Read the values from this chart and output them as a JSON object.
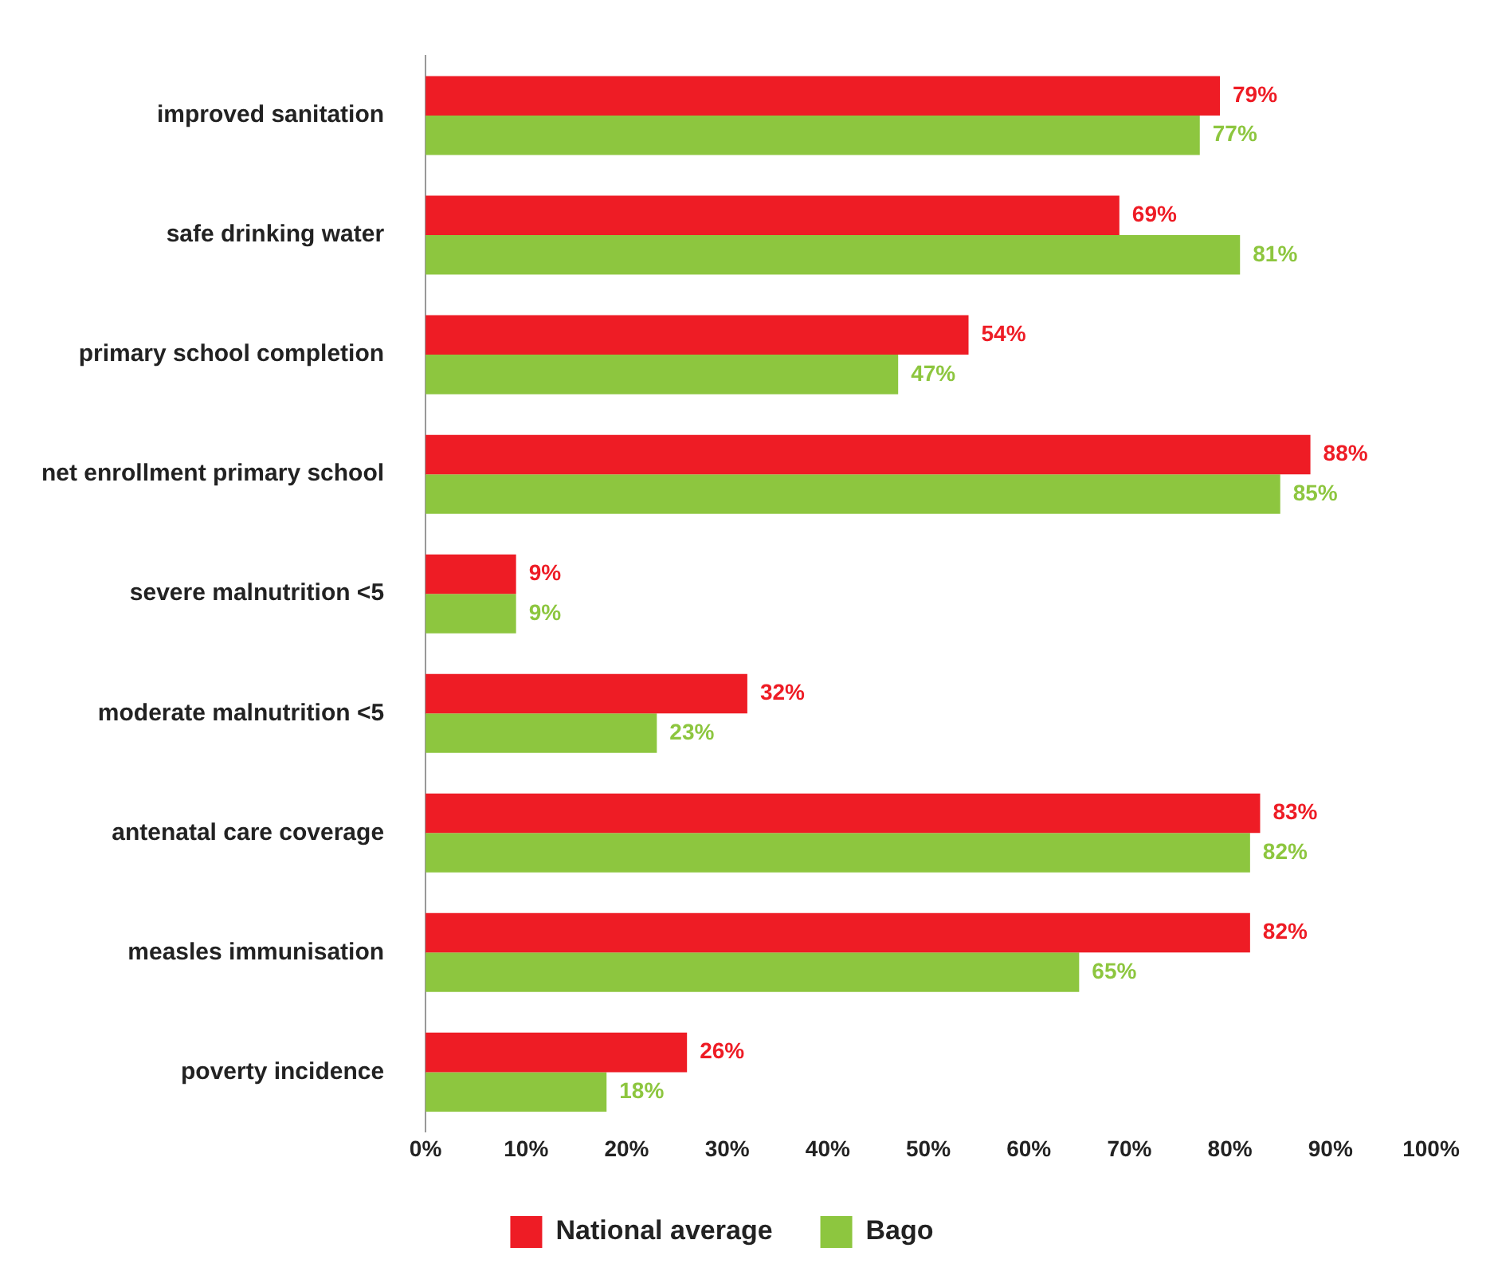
{
  "chart_data": {
    "type": "bar",
    "orientation": "horizontal",
    "categories": [
      "improved sanitation",
      "safe drinking water",
      "primary school completion",
      "net enrollment primary school",
      "severe malnutrition <5",
      "moderate malnutrition <5",
      "antenatal care coverage",
      "measles immunisation",
      "poverty incidence"
    ],
    "series": [
      {
        "name": "National average",
        "color": "#ee1c25",
        "values": [
          79,
          69,
          54,
          88,
          9,
          32,
          83,
          82,
          26
        ],
        "value_labels": [
          "79%",
          "69%",
          "54%",
          "88%",
          "9%",
          "32%",
          "83%",
          "82%",
          "26%"
        ]
      },
      {
        "name": "Bago",
        "color": "#8dc63f",
        "values": [
          77,
          81,
          47,
          85,
          9,
          23,
          82,
          65,
          18
        ],
        "value_labels": [
          "77%",
          "81%",
          "47%",
          "85%",
          "9%",
          "23%",
          "82%",
          "65%",
          "18%"
        ]
      }
    ],
    "xlim": [
      0,
      100
    ],
    "xticks": [
      {
        "value": 0,
        "label": "0%"
      },
      {
        "value": 10,
        "label": "10%"
      },
      {
        "value": 20,
        "label": "20%"
      },
      {
        "value": 30,
        "label": "30%"
      },
      {
        "value": 40,
        "label": "40%"
      },
      {
        "value": 50,
        "label": "50%"
      },
      {
        "value": 60,
        "label": "60%"
      },
      {
        "value": 70,
        "label": "70%"
      },
      {
        "value": 80,
        "label": "80%"
      },
      {
        "value": 90,
        "label": "90%"
      },
      {
        "value": 100,
        "label": "100%"
      }
    ],
    "grid": false,
    "legend": "bottom"
  }
}
